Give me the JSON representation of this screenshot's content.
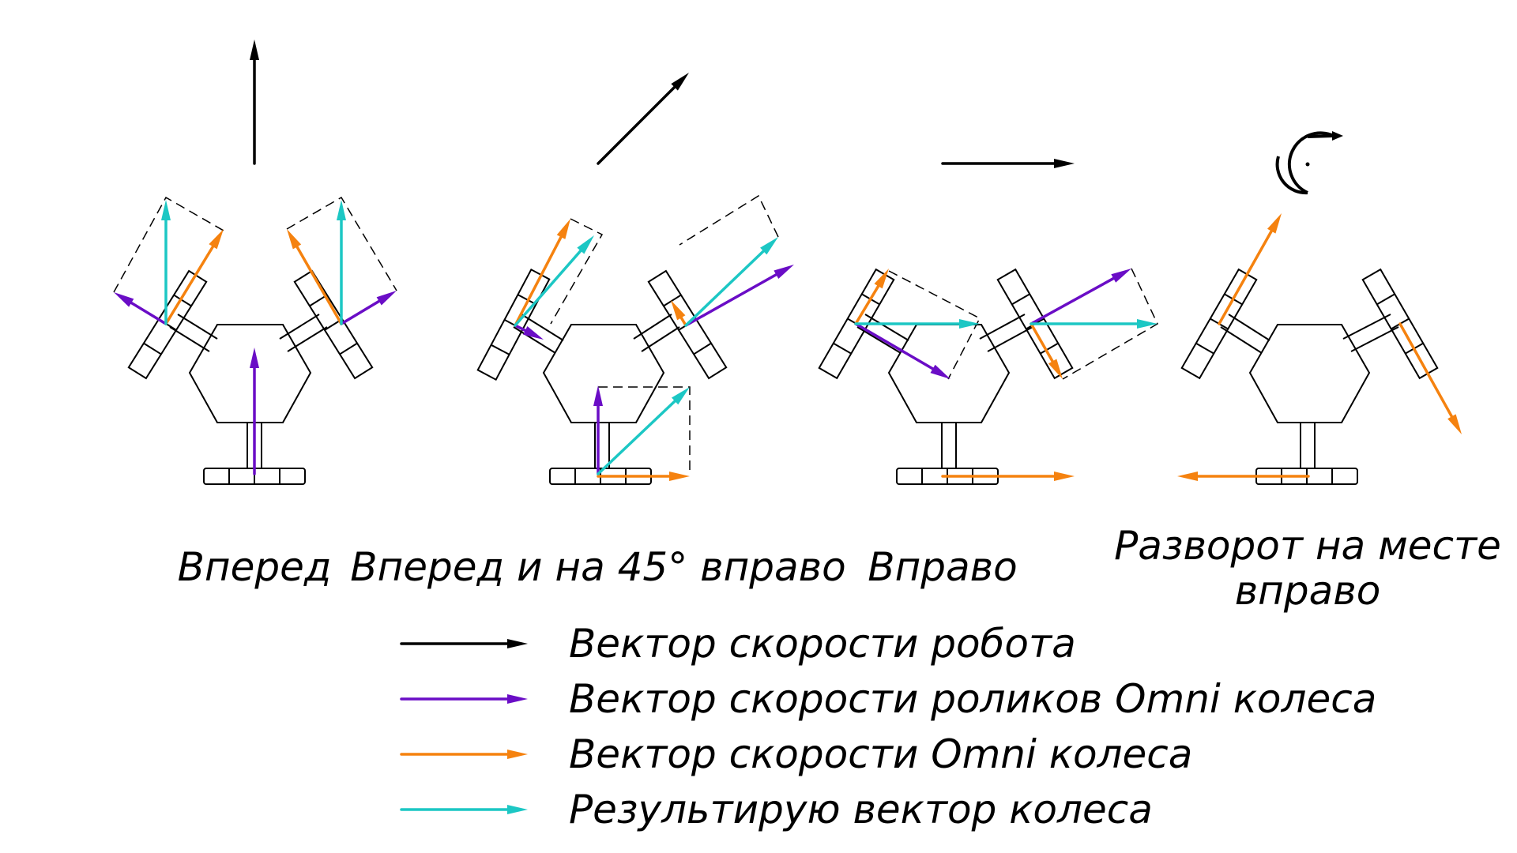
{
  "colors": {
    "robot": "#000000",
    "rollers": "#6a0dc6",
    "wheel": "#f5820f",
    "result": "#1cc7c4",
    "body": "#000000",
    "dashed": "#000000"
  },
  "panels": [
    {
      "caption": "Вперед",
      "caption_line2": ""
    },
    {
      "caption": "Вперед и на 45° вправо",
      "caption_line2": ""
    },
    {
      "caption": "Вправо",
      "caption_line2": ""
    },
    {
      "caption": "Разворот на месте",
      "caption_line2": "вправо"
    }
  ],
  "legend": [
    {
      "label": "Вектор скорости робота",
      "color_key": "robot"
    },
    {
      "label": "Вектор скорости роликов Omni колеса",
      "color_key": "rollers"
    },
    {
      "label": "Вектор скорости Omni колеса",
      "color_key": "wheel"
    },
    {
      "label": "Результирую вектор колеса",
      "color_key": "result"
    }
  ]
}
